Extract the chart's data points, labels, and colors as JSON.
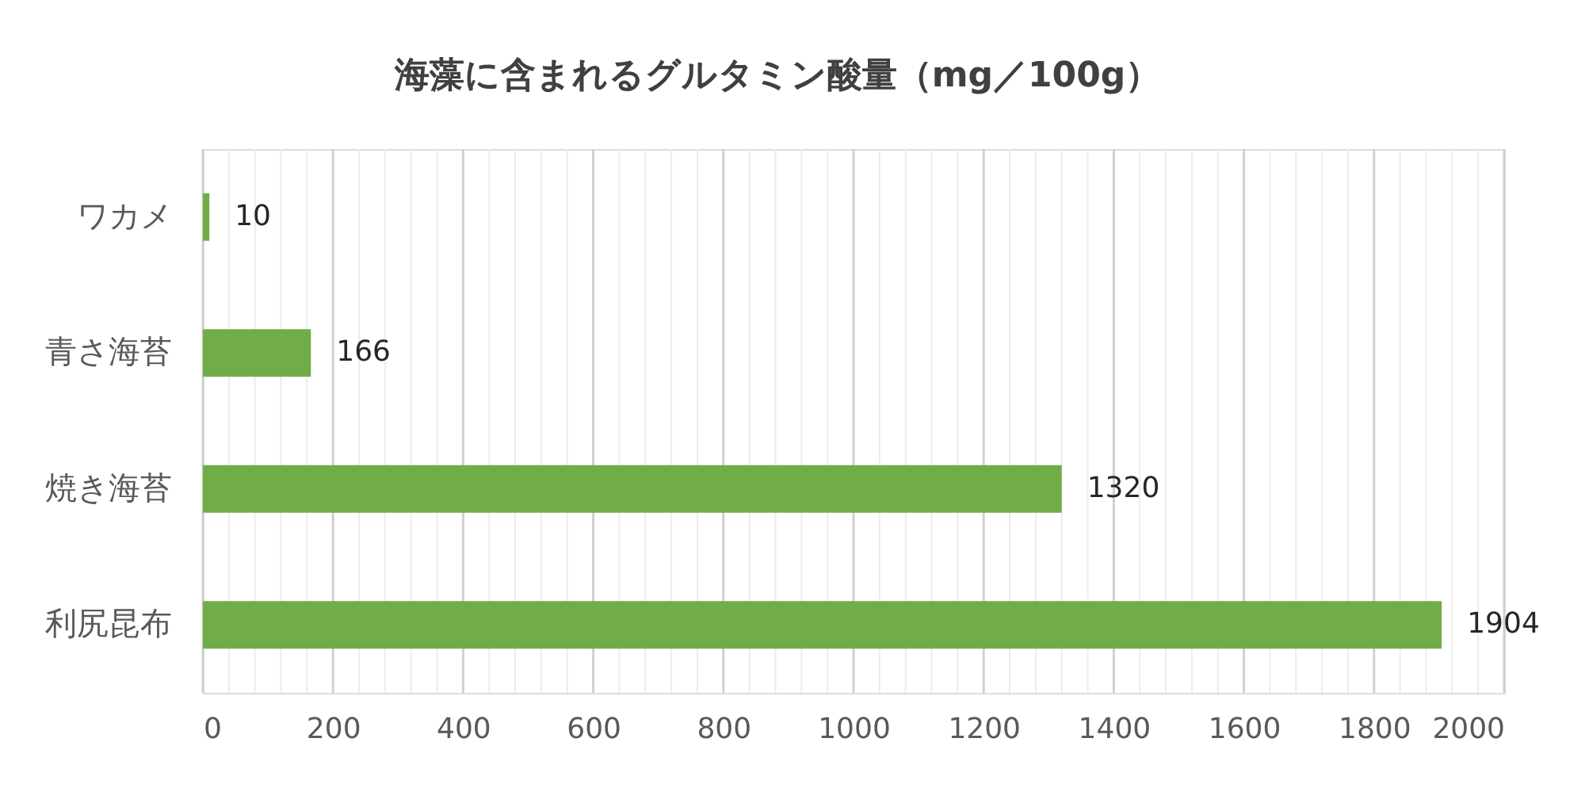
{
  "chart_data": {
    "type": "bar",
    "orientation": "horizontal",
    "title": "海藻に含まれるグルタミン酸量（mg／100g）",
    "categories": [
      "ワカメ",
      "青さ海苔",
      "焼き海苔",
      "利尻昆布"
    ],
    "values": [
      10,
      166,
      1320,
      1904
    ],
    "color": "#70ad47",
    "data_labels": true,
    "xlim": [
      0,
      2000
    ],
    "xticks": [
      0,
      {
        "value": 40,
        "label": null
      },
      {
        "value": 80,
        "label": null
      },
      {
        "value": 120,
        "label": null
      },
      {
        "value": 160,
        "label": null
      },
      200,
      {
        "value": 240,
        "label": null
      },
      {
        "value": 280,
        "label": null
      },
      {
        "value": 320,
        "label": null
      },
      {
        "value": 360,
        "label": null
      },
      400,
      {
        "value": 440,
        "label": null
      },
      {
        "value": 480,
        "label": null
      },
      {
        "value": 520,
        "label": null
      },
      {
        "value": 560,
        "label": null
      },
      600,
      {
        "value": 640,
        "label": null
      },
      {
        "value": 680,
        "label": null
      },
      {
        "value": 720,
        "label": null
      },
      {
        "value": 760,
        "label": null
      },
      800,
      {
        "value": 840,
        "label": null
      },
      {
        "value": 880,
        "label": null
      },
      {
        "value": 920,
        "label": null
      },
      {
        "value": 960,
        "label": null
      },
      1000,
      {
        "value": 1040,
        "label": null
      },
      {
        "value": 1080,
        "label": null
      },
      {
        "value": 1120,
        "label": null
      },
      {
        "value": 1160,
        "label": null
      },
      1200,
      {
        "value": 1240,
        "label": null
      },
      {
        "value": 1280,
        "label": null
      },
      {
        "value": 1320,
        "label": null
      },
      {
        "value": 1360,
        "label": null
      },
      1400,
      {
        "value": 1440,
        "label": null
      },
      {
        "value": 1480,
        "label": null
      },
      {
        "value": 1520,
        "label": null
      },
      {
        "value": 1560,
        "label": null
      },
      1600,
      {
        "value": 1640,
        "label": null
      },
      {
        "value": 1680,
        "label": null
      },
      {
        "value": 1720,
        "label": null
      },
      {
        "value": 1760,
        "label": null
      },
      1800,
      {
        "value": 1840,
        "label": null
      },
      {
        "value": 1880,
        "label": null
      },
      {
        "value": 1920,
        "label": null
      },
      {
        "value": 1960,
        "label": null
      },
      2000
    ],
    "grid": "x"
  }
}
